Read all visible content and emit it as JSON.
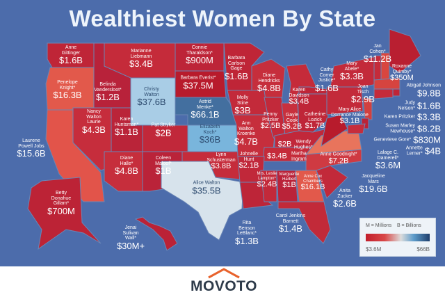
{
  "title": "Wealthiest Women By State",
  "states": [
    {
      "name": "Anne Gittinger",
      "value": "$1.6B",
      "color": "#bf2537"
    },
    {
      "name": "Penelope Knight*",
      "value": "$16.3B",
      "color": "#e2594b"
    },
    {
      "name": "Belinda Vandersloot*",
      "value": "$1.2B",
      "color": "#b8223a"
    },
    {
      "name": "Marianne Liebmann",
      "value": "$3.4B",
      "color": "#c52b3a"
    },
    {
      "name": "Christy Walton",
      "value": "$37.6B",
      "color": "#a9cde6"
    },
    {
      "name": "Connie Tharaldson*",
      "value": "$900M",
      "color": "#bd2438"
    },
    {
      "name": "Barbara Everist*",
      "value": "$37.5M",
      "color": "#b81b2c"
    },
    {
      "name": "Astrid Menke*",
      "value": "$66.1B",
      "color": "#436f9f"
    },
    {
      "name": "Elizabeth Koch*",
      "value": "$36B",
      "color": "#79b5dc"
    },
    {
      "name": "Nancy Walton Laurie",
      "value": "$4.3B",
      "color": "#c62d3c"
    },
    {
      "name": "Laurene Powell Jobs",
      "value": "$15.6B",
      "color": "#e2544a"
    },
    {
      "name": "Karen Huntsman*",
      "value": "$1.1B",
      "color": "#ba2439"
    },
    {
      "name": "Pat Stryker",
      "value": "$2B",
      "color": "#c1283a"
    },
    {
      "name": "Diane Halle*",
      "value": "$4.8B",
      "color": "#c62e3c"
    },
    {
      "name": "Coleen Maloof*",
      "value": "$1B",
      "color": "#ba2339"
    },
    {
      "name": "Lynn Schusterman",
      "value": "$3.8B",
      "color": "#c52c3b"
    },
    {
      "name": "Alice Walton",
      "value": "$35.5B",
      "color": "#d7e3ec"
    },
    {
      "name": "Barbara Carlson Gage",
      "value": "$1.6B",
      "color": "#bf2537"
    },
    {
      "name": "Diane Hendricks",
      "value": "$4.8B",
      "color": "#c62e3c"
    },
    {
      "name": "Molly Stine",
      "value": "$3B",
      "color": "#c32a3a"
    },
    {
      "name": "Ann Walton Kroenke",
      "value": "$4.7B",
      "color": "#c62e3c"
    },
    {
      "name": "Penny Pritzker",
      "value": "$2.5B",
      "color": "#c2293a"
    },
    {
      "name": "Karen Davidson",
      "value": "$3.4B",
      "color": "#c52b3a"
    },
    {
      "name": "Gayle Cook",
      "value": "$5.2B",
      "color": "#c8303d"
    },
    {
      "name": "Catherine Lozick",
      "value": "$1.7B",
      "color": "#bf2638"
    },
    {
      "name": "Wendy Hughes*",
      "value": "$2B",
      "color": "#c1283a"
    },
    {
      "name": "Martha Ingram",
      "value": "$3.4B",
      "color": "#c52b3a"
    },
    {
      "name": "Johnelle Hunt",
      "value": "$2.1B",
      "color": "#c1283a"
    },
    {
      "name": "Rita Benson LeBlanc*",
      "value": "$1.3B",
      "color": "#bd2538"
    },
    {
      "name": "Mrs. Leslie Lampton*",
      "value": "$2.4B",
      "color": "#c2293a"
    },
    {
      "name": "Marguerite Harbert",
      "value": "$1B",
      "color": "#ba2339"
    },
    {
      "name": "Anne Cox Chambers",
      "value": "$16.1B",
      "color": "#e2594b"
    },
    {
      "name": "Carol Jenkins Barnett",
      "value": "$1.4B",
      "color": "#c22a39"
    },
    {
      "name": "Anita Zucker",
      "value": "$2.6B",
      "color": "#c2293a"
    },
    {
      "name": "Anne Goodnight*",
      "value": "$7.2B",
      "color": "#cf3a42"
    },
    {
      "name": "Jacqueline Mars",
      "value": "$19.6B",
      "color": "#e8745c"
    },
    {
      "name": "Lalage C. Damerell*",
      "value": "$3.6M",
      "color": "#b81b2c"
    },
    {
      "name": "Cathy Comer Justice*",
      "value": "$1.6B",
      "color": "#bf2537"
    },
    {
      "name": "Mary Alice Dorrance Malone",
      "value": "$3.1B",
      "color": "#c32a3a"
    },
    {
      "name": "Joan Tisch",
      "value": "$2.9B",
      "color": "#c32a3a"
    },
    {
      "name": "Roxanne Quimby*",
      "value": "$350M",
      "color": "#b91f31"
    },
    {
      "name": "Mary Abele*",
      "value": "$3.3B",
      "color": "#c52b3a"
    },
    {
      "name": "Jan Cohen*",
      "value": "$11.2B",
      "color": "#d9463f"
    },
    {
      "name": "Abigail Johnson",
      "value": "$9.8B",
      "color": "#d6443f"
    },
    {
      "name": "Judy Nelson*",
      "value": "$1.6B",
      "color": "#bf2537"
    },
    {
      "name": "Karen Pritzker",
      "value": "$3.3B",
      "color": "#c52b3a"
    },
    {
      "name": "Susan Marley Newhouse*",
      "value": "$8.2B",
      "color": "#d2403f"
    },
    {
      "name": "Genevieve Gore*",
      "value": "$830M",
      "color": "#bc2336"
    },
    {
      "name": "Annette Lerner*",
      "value": "$4B",
      "color": "#c62d3c"
    },
    {
      "name": "Betty Donahue Gillam*",
      "value": "$700M",
      "color": "#bc2336"
    },
    {
      "name": "Jenai Sulivan Wall*",
      "value": "$30M+",
      "color": "#bb2236"
    }
  ],
  "legend": {
    "millions": "M = Millions",
    "billions": "B = Billions",
    "min": "$3.6M",
    "max": "$66B",
    "colors": [
      "#c21f2c",
      "#dcdcdc",
      "#1f3f6c"
    ]
  },
  "footer": {
    "brand": "MOVOTO",
    "brand_color": "#2e3b4a",
    "accent": "#e8622c"
  },
  "background": "#4c6cab"
}
